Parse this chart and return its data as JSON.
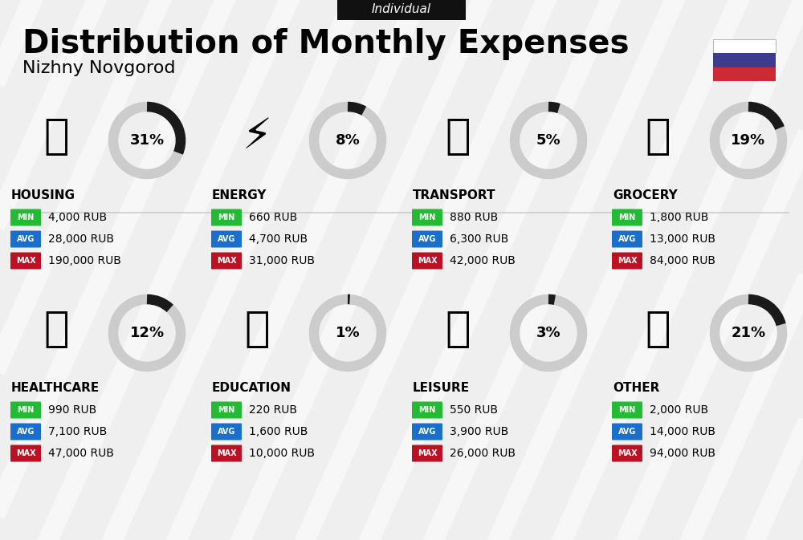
{
  "title": "Distribution of Monthly Expenses",
  "subtitle": "Nizhny Novgorod",
  "tag": "Individual",
  "bg_color": "#efefef",
  "categories": [
    {
      "name": "HOUSING",
      "pct": 31,
      "min": "4,000 RUB",
      "avg": "28,000 RUB",
      "max": "190,000 RUB",
      "icon_idx": 0,
      "row": 0,
      "col": 0
    },
    {
      "name": "ENERGY",
      "pct": 8,
      "min": "660 RUB",
      "avg": "4,700 RUB",
      "max": "31,000 RUB",
      "icon_idx": 1,
      "row": 0,
      "col": 1
    },
    {
      "name": "TRANSPORT",
      "pct": 5,
      "min": "880 RUB",
      "avg": "6,300 RUB",
      "max": "42,000 RUB",
      "icon_idx": 2,
      "row": 0,
      "col": 2
    },
    {
      "name": "GROCERY",
      "pct": 19,
      "min": "1,800 RUB",
      "avg": "13,000 RUB",
      "max": "84,000 RUB",
      "icon_idx": 3,
      "row": 0,
      "col": 3
    },
    {
      "name": "HEALTHCARE",
      "pct": 12,
      "min": "990 RUB",
      "avg": "7,100 RUB",
      "max": "47,000 RUB",
      "icon_idx": 4,
      "row": 1,
      "col": 0
    },
    {
      "name": "EDUCATION",
      "pct": 1,
      "min": "220 RUB",
      "avg": "1,600 RUB",
      "max": "10,000 RUB",
      "icon_idx": 5,
      "row": 1,
      "col": 1
    },
    {
      "name": "LEISURE",
      "pct": 3,
      "min": "550 RUB",
      "avg": "3,900 RUB",
      "max": "26,000 RUB",
      "icon_idx": 6,
      "row": 1,
      "col": 2
    },
    {
      "name": "OTHER",
      "pct": 21,
      "min": "2,000 RUB",
      "avg": "14,000 RUB",
      "max": "94,000 RUB",
      "icon_idx": 7,
      "row": 1,
      "col": 3
    }
  ],
  "color_min": "#22bb33",
  "color_avg": "#1a6fcc",
  "color_max": "#bb1122",
  "color_arc_filled": "#1a1a1a",
  "color_arc_empty": "#cccccc",
  "flag_blue": "#3d3b8e",
  "flag_red": "#cc2b36"
}
